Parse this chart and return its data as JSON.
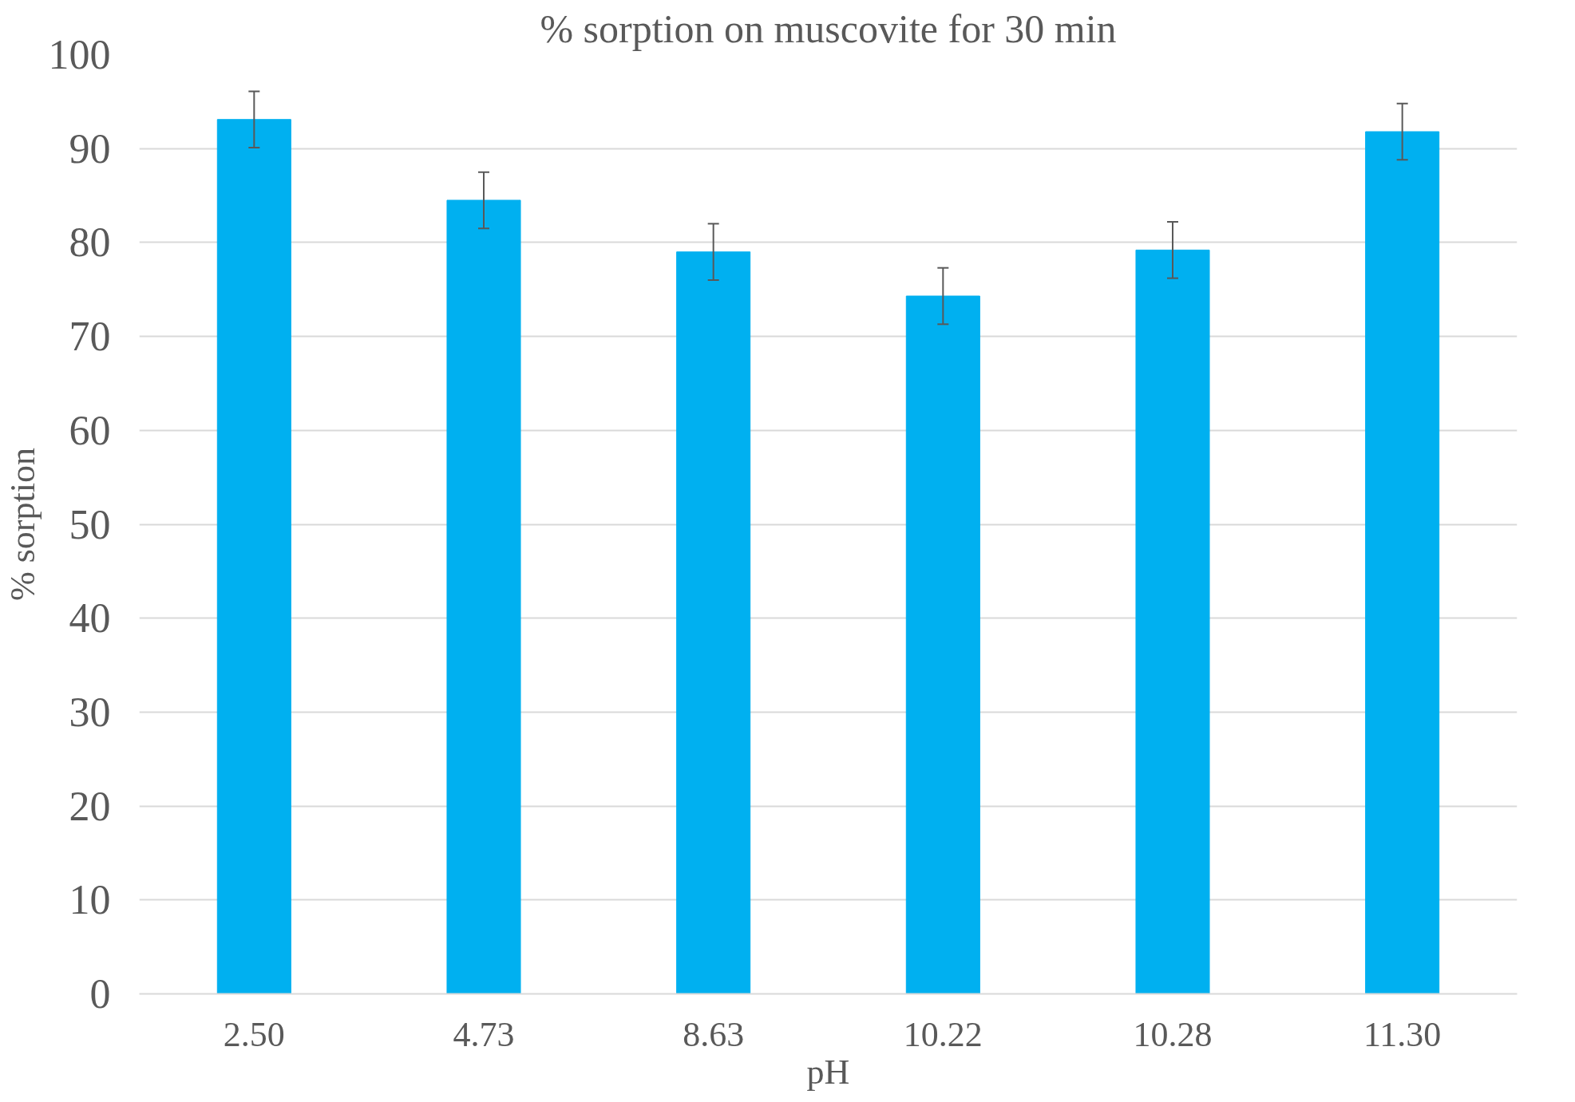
{
  "chart_data": {
    "type": "bar",
    "title": "% sorption on muscovite for 30 min",
    "xlabel": "pH",
    "ylabel": "% sorption",
    "categories": [
      "2.50",
      "4.73",
      "8.63",
      "10.22",
      "10.28",
      "11.30"
    ],
    "values": [
      93.1,
      84.5,
      79.0,
      74.3,
      79.2,
      91.8
    ],
    "errors": [
      3,
      3,
      3,
      3,
      3,
      3
    ],
    "color": "#00b0f0",
    "ylim": [
      0,
      100
    ],
    "yticks": [
      0,
      10,
      20,
      30,
      40,
      50,
      60,
      70,
      80,
      90,
      100
    ],
    "grid": "y"
  }
}
